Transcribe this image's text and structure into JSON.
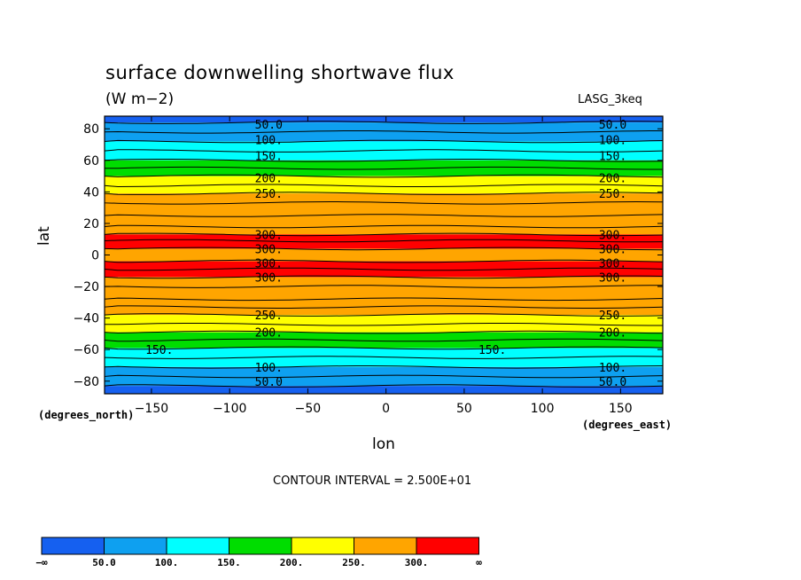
{
  "chart_data": {
    "type": "heatmap",
    "title": "surface downwelling shortwave flux",
    "units": "(W m−2)",
    "dataset": "LASG_3keq",
    "xlabel": "lon",
    "ylabel": "lat",
    "x_units": "(degrees_east)",
    "y_units": "(degrees_north)",
    "xlim": [
      -180,
      177
    ],
    "ylim": [
      -88,
      88
    ],
    "x_ticks": [
      -150,
      -100,
      -50,
      0,
      50,
      100,
      150
    ],
    "y_ticks": [
      -80,
      -60,
      -40,
      -20,
      0,
      20,
      40,
      60,
      80
    ],
    "x_tick_labels": [
      "−150",
      "−100",
      "−50",
      "0",
      "50",
      "100",
      "150"
    ],
    "y_tick_labels": [
      "−80",
      "−60",
      "−40",
      "−20",
      "0",
      "20",
      "40",
      "60",
      "80"
    ],
    "contour_interval_text": "CONTOUR INTERVAL = 2.500E+01",
    "contour_interval": 25,
    "fill_levels": [
      50,
      100,
      150,
      200,
      250,
      300
    ],
    "legend": {
      "labels": [
        "−∞",
        "50.0",
        "100.",
        "150.",
        "200.",
        "250.",
        "300.",
        "∞"
      ],
      "colors": [
        "#1560f0",
        "#0ea0f0",
        "#00ffff",
        "#00dd00",
        "#ffff00",
        "#ffa500",
        "#ff0000"
      ]
    },
    "bands": [
      {
        "range": "<50",
        "lat_from": 84,
        "lat_to": 88,
        "color": "#1560f0"
      },
      {
        "range": "<50",
        "lat_from": -88,
        "lat_to": -83,
        "color": "#1560f0"
      },
      {
        "range": "50-100",
        "lat_from": 72,
        "lat_to": 84,
        "color": "#0ea0f0"
      },
      {
        "range": "50-100",
        "lat_from": -83,
        "lat_to": -71,
        "color": "#0ea0f0"
      },
      {
        "range": "100-150",
        "lat_from": 60,
        "lat_to": 72,
        "color": "#00ffff"
      },
      {
        "range": "100-150",
        "lat_from": -71,
        "lat_to": -59,
        "color": "#00ffff"
      },
      {
        "range": "150-200",
        "lat_from": 50,
        "lat_to": 60,
        "color": "#00dd00"
      },
      {
        "range": "150-200",
        "lat_from": -59,
        "lat_to": -49,
        "color": "#00dd00"
      },
      {
        "range": "200-250",
        "lat_from": 39,
        "lat_to": 50,
        "color": "#ffff00"
      },
      {
        "range": "200-250",
        "lat_from": -49,
        "lat_to": -38,
        "color": "#ffff00"
      },
      {
        "range": "250-300",
        "lat_from": 13,
        "lat_to": 39,
        "color": "#ffa500"
      },
      {
        "range": "250-300",
        "lat_from": -38,
        "lat_to": -14,
        "color": "#ffa500"
      },
      {
        "range": "250-300",
        "lat_from": -4,
        "lat_to": 4,
        "color": "#ffa500"
      },
      {
        "range": ">300",
        "lat_from": 4,
        "lat_to": 13,
        "color": "#ff0000"
      },
      {
        "range": ">300",
        "lat_from": -14,
        "lat_to": -4,
        "color": "#ff0000"
      }
    ],
    "contour_labels": [
      {
        "text": "50.0",
        "lon": -75,
        "lat": 83
      },
      {
        "text": "50.0",
        "lon": 145,
        "lat": 83
      },
      {
        "text": "100.",
        "lon": -75,
        "lat": 73
      },
      {
        "text": "100.",
        "lon": 145,
        "lat": 73
      },
      {
        "text": "150.",
        "lon": -75,
        "lat": 63
      },
      {
        "text": "150.",
        "lon": 145,
        "lat": 63
      },
      {
        "text": "200.",
        "lon": -75,
        "lat": 49
      },
      {
        "text": "200.",
        "lon": 145,
        "lat": 49
      },
      {
        "text": "250.",
        "lon": -75,
        "lat": 39
      },
      {
        "text": "250.",
        "lon": 145,
        "lat": 39
      },
      {
        "text": "300.",
        "lon": -75,
        "lat": 13
      },
      {
        "text": "300.",
        "lon": 145,
        "lat": 13
      },
      {
        "text": "300.",
        "lon": -75,
        "lat": 4
      },
      {
        "text": "300.",
        "lon": 145,
        "lat": 4
      },
      {
        "text": "300.",
        "lon": -75,
        "lat": -5
      },
      {
        "text": "300.",
        "lon": 145,
        "lat": -5
      },
      {
        "text": "300.",
        "lon": -75,
        "lat": -14
      },
      {
        "text": "300.",
        "lon": 145,
        "lat": -14
      },
      {
        "text": "250.",
        "lon": -75,
        "lat": -38
      },
      {
        "text": "250.",
        "lon": 145,
        "lat": -38
      },
      {
        "text": "200.",
        "lon": -75,
        "lat": -49
      },
      {
        "text": "200.",
        "lon": 145,
        "lat": -49
      },
      {
        "text": "150.",
        "lon": -145,
        "lat": -60
      },
      {
        "text": "150.",
        "lon": 68,
        "lat": -60
      },
      {
        "text": "100.",
        "lon": -75,
        "lat": -71
      },
      {
        "text": "100.",
        "lon": 145,
        "lat": -71
      },
      {
        "text": "50.0",
        "lon": -75,
        "lat": -80
      },
      {
        "text": "50.0",
        "lon": 145,
        "lat": -80
      }
    ],
    "grid": false
  }
}
